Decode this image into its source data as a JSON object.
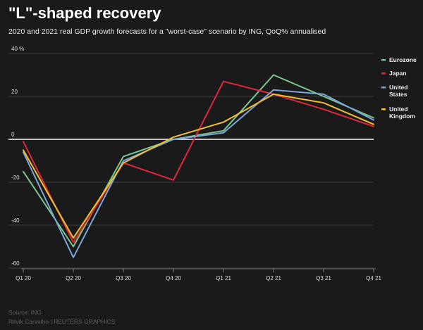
{
  "title": "\"L\"-shaped recovery",
  "subtitle": "2020 and 2021 real GDP growth forecasts for a \"worst-case\" scenario by ING, QoQ% annualised",
  "source": "Source: ING",
  "credit": "Ritvik Carvalho   | REUTERS GRAPHICS",
  "chart_data": {
    "type": "line",
    "title": "\"L\"-shaped recovery",
    "subtitle": "2020 and 2021 real GDP growth forecasts for a \"worst-case\" scenario by ING, QoQ% annualised",
    "categories": [
      "Q1 20",
      "Q2 20",
      "Q3 20",
      "Q4 20",
      "Q1 21",
      "Q2 21",
      "Q3 21",
      "Q4 21"
    ],
    "y_tick_labels": [
      "40 %",
      "20",
      "0",
      "-20",
      "-40",
      "-60"
    ],
    "ylim": [
      -60,
      40
    ],
    "yticks": [
      40,
      20,
      0,
      -20,
      -40,
      -60
    ],
    "grid": true,
    "legend_position": "right",
    "series": [
      {
        "name": "Eurozone",
        "color": "#79c78e",
        "values": [
          -15,
          -50,
          -8,
          0,
          4,
          30,
          20,
          10
        ]
      },
      {
        "name": "Japan",
        "color": "#e0283c",
        "values": [
          -1,
          -48,
          -11,
          -19,
          27,
          21,
          14,
          6
        ]
      },
      {
        "name": "United\nStates",
        "color": "#7aa7d8",
        "values": [
          -6,
          -55,
          -10,
          0,
          3,
          23,
          21,
          9
        ]
      },
      {
        "name": "United\nKingdom",
        "color": "#f2c12e",
        "values": [
          -5,
          -46,
          -11,
          1,
          8,
          21,
          17,
          7
        ]
      }
    ]
  }
}
